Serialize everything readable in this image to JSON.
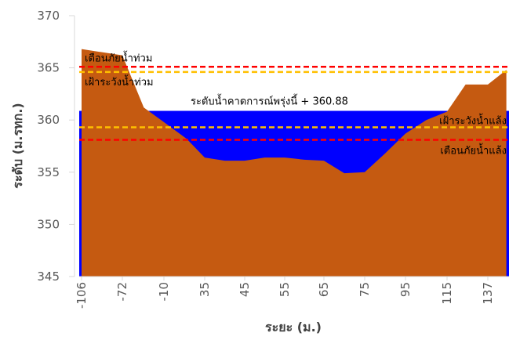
{
  "chart_data": {
    "type": "area",
    "xlabel": "ระยะ (ม.)",
    "ylabel": "ระดับ (ม.รทก.)",
    "ylim": [
      345,
      370
    ],
    "yticks": [
      345,
      350,
      355,
      360,
      365,
      370
    ],
    "xtick_labels": [
      "-106",
      "-72",
      "-10",
      "35",
      "45",
      "55",
      "65",
      "75",
      "95",
      "115",
      "137"
    ],
    "grid": false,
    "colors": {
      "ground": "#C55A11",
      "water": "#0000FF",
      "flood_warning": "#FF0000",
      "flood_watch": "#FFC000",
      "drought_warning": "#FF0000",
      "drought_watch": "#FFC000"
    },
    "ground_profile": {
      "name": "",
      "points": [
        [
          -106,
          366.8
        ],
        [
          -72,
          366.2
        ],
        [
          -40,
          361.2
        ],
        [
          -10,
          359.8
        ],
        [
          15,
          358.2
        ],
        [
          35,
          356.4
        ],
        [
          40,
          356.1
        ],
        [
          45,
          356.1
        ],
        [
          50,
          356.4
        ],
        [
          55,
          356.4
        ],
        [
          60,
          356.2
        ],
        [
          65,
          356.1
        ],
        [
          70,
          354.9
        ],
        [
          75,
          355.0
        ],
        [
          85,
          356.8
        ],
        [
          95,
          358.7
        ],
        [
          105,
          360.0
        ],
        [
          115,
          360.8
        ],
        [
          125,
          363.4
        ],
        [
          130,
          363.4
        ],
        [
          137,
          363.4
        ],
        [
          147,
          364.8
        ]
      ]
    },
    "water_level": {
      "value": 360.88,
      "label": "ระดับน้ำคาดการณ์พรุ่งนี้ + 360.88"
    },
    "reference_lines": [
      {
        "key": "flood_warning",
        "value": 365.1,
        "label": "เตือนภัยน้ำท่วม"
      },
      {
        "key": "flood_watch",
        "value": 364.6,
        "label": "เฝ้าระวังน้ำท่วม"
      },
      {
        "key": "drought_watch",
        "value": 359.3,
        "label": "เฝ้าระวังน้ำแล้ง"
      },
      {
        "key": "drought_warning",
        "value": 358.1,
        "label": "เตือนภัยน้ำแล้ง"
      }
    ]
  }
}
